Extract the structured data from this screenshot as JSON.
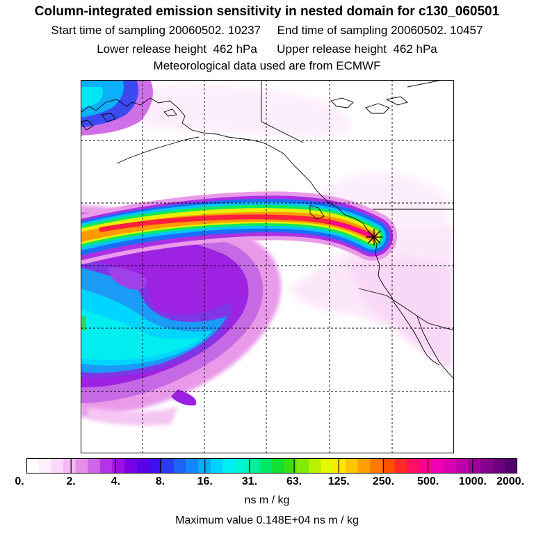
{
  "header": {
    "title": "Column-integrated emission sensitivity in nested domain for c130_060501",
    "sampling_line": "Start time of sampling 20060502. 10237     End time of sampling 20060502. 10457",
    "release_line": "Lower release height  462 hPa      Upper release height  462 hPa",
    "met_line": "Meteorological data used are from ECMWF"
  },
  "legend": {
    "ticks": [
      "0.",
      "2.",
      "4.",
      "8.",
      "16.",
      "31.",
      "63.",
      "125.",
      "250.",
      "500.",
      "1000.",
      "2000."
    ],
    "colors": [
      "#ffffff",
      "#ffeefd",
      "#fdd7fb",
      "#f5b9f4",
      "#e68ee9",
      "#d066e8",
      "#b433e6",
      "#9b11e4",
      "#7a00e6",
      "#5a00e8",
      "#3e10f0",
      "#2a3cf5",
      "#1d63f8",
      "#1088fb",
      "#04adfd",
      "#00d2ff",
      "#00f0f5",
      "#00f5d0",
      "#00f0a0",
      "#00e868",
      "#10e030",
      "#3ce010",
      "#80ea00",
      "#b8f200",
      "#e4f800",
      "#ffe800",
      "#ffc400",
      "#ffa000",
      "#ff7a00",
      "#ff5000",
      "#ff2a2a",
      "#ff1060",
      "#ff0090",
      "#f000b0",
      "#d800b0",
      "#bc00a8",
      "#a0009c",
      "#84008e",
      "#6a007e",
      "#520070"
    ],
    "units": "ns m / kg"
  },
  "footer": {
    "max_value": "Maximum value  0.148E+04 ns m / kg"
  },
  "map": {
    "receptor_marker": "star-marker",
    "colorscale_max": 2000
  }
}
